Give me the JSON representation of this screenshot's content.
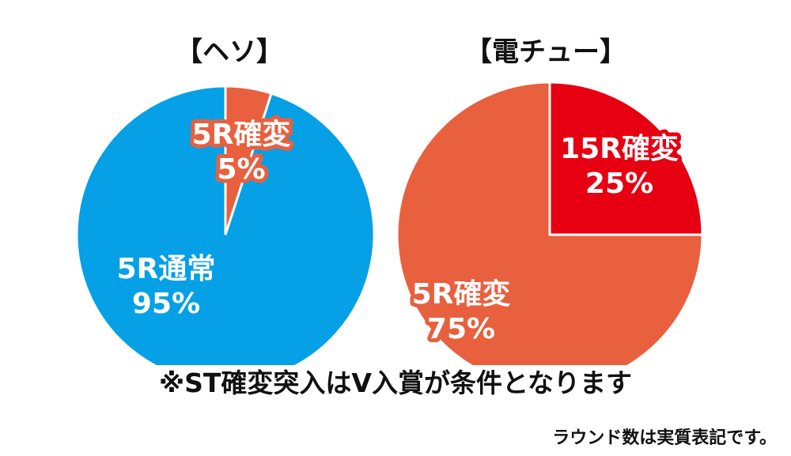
{
  "chart_data": [
    {
      "type": "pie",
      "title": "【ヘソ】",
      "slices": [
        {
          "name": "5R確変",
          "value": 5,
          "percent_label": "5%",
          "color": "#e8603e"
        },
        {
          "name": "5R通常",
          "value": 95,
          "percent_label": "95%",
          "color": "#05a0e6"
        }
      ]
    },
    {
      "type": "pie",
      "title": "【電チュー】",
      "slices": [
        {
          "name": "15R確変",
          "value": 25,
          "percent_label": "25%",
          "color": "#e60012"
        },
        {
          "name": "5R確変",
          "value": 75,
          "percent_label": "75%",
          "color": "#e8603e"
        }
      ]
    }
  ],
  "footnote": "※ST確変突入はV入賞が条件となります",
  "note": "ラウンド数は実質表記です。"
}
